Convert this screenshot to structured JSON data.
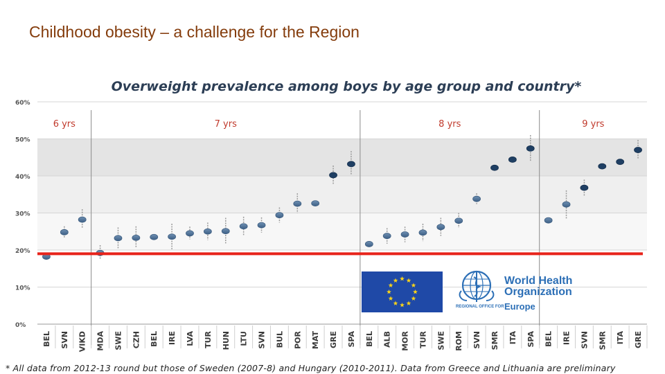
{
  "slide_title": "Childhood obesity – a challenge for the Region",
  "footnote": "* All data from 2012-13 round but those of Sweden (2007-8) and Hungary (2010-2011). Data from Greece and Lithuania are preliminary",
  "logos": {
    "who_line1": "World Health",
    "who_line2": "Organization",
    "who_subtitle": "REGIONAL OFFICE FOR",
    "who_region": "Europe"
  },
  "colors": {
    "title": "#843c0c",
    "marker": "#4a6f95",
    "marker_dark": "#1f3f63",
    "reference_line": "#e8231a",
    "eu_blue": "#1f49a7",
    "eu_star": "#f7d21a",
    "who_blue": "#2c6fb6"
  },
  "chart_data": {
    "type": "scatter",
    "title": "Overweight prevalence among boys by age group and country*",
    "xlabel": "",
    "ylabel": "",
    "ylim": [
      0,
      60
    ],
    "yticks": [
      "0%",
      "10%",
      "20%",
      "30%",
      "40%",
      "50%",
      "60%"
    ],
    "reference_line": 19,
    "groups": [
      {
        "label": "6 yrs",
        "countries": [
          "BEL",
          "SVN",
          "VIKD"
        ]
      },
      {
        "label": "7 yrs",
        "countries": [
          "MDA",
          "SWE",
          "CZH",
          "BEL",
          "IRE",
          "LVA",
          "TUR",
          "HUN",
          "LTU",
          "SVN",
          "BUL",
          "POR",
          "MAT",
          "GRE",
          "SPA"
        ]
      },
      {
        "label": "8 yrs",
        "countries": [
          "BEL",
          "ALB",
          "MOR",
          "TUR",
          "SWE",
          "ROM",
          "SVN",
          "SMR",
          "ITA",
          "SPA"
        ]
      },
      {
        "label": "9 yrs",
        "countries": [
          "BEL",
          "IRE",
          "SVN",
          "SMR",
          "ITA",
          "GRE"
        ]
      }
    ],
    "categories": [
      "BEL",
      "SVN",
      "VIKD",
      "MDA",
      "SWE",
      "CZH",
      "BEL",
      "IRE",
      "LVA",
      "TUR",
      "HUN",
      "LTU",
      "SVN",
      "BUL",
      "POR",
      "MAT",
      "GRE",
      "SPA",
      "BEL",
      "ALB",
      "MOR",
      "TUR",
      "SWE",
      "ROM",
      "SVN",
      "SMR",
      "ITA",
      "SPA",
      "BEL",
      "IRE",
      "SVN",
      "SMR",
      "ITA",
      "GRE"
    ],
    "values": [
      18.2,
      24.8,
      28.2,
      19.2,
      23.2,
      23.3,
      23.5,
      23.6,
      24.5,
      25.0,
      25.1,
      26.4,
      26.7,
      29.4,
      32.5,
      32.6,
      40.2,
      43.2,
      21.6,
      23.8,
      24.2,
      24.7,
      26.2,
      27.9,
      33.8,
      42.2,
      44.4,
      47.4,
      28.0,
      32.3,
      36.8,
      42.6,
      43.8,
      47.0
    ],
    "ci_low": [
      null,
      23.2,
      25.8,
      17.4,
      20.4,
      20.7,
      null,
      20.2,
      22.9,
      22.7,
      21.8,
      23.9,
      24.7,
      27.4,
      30.0,
      null,
      37.8,
      40.2,
      null,
      21.7,
      22.1,
      22.4,
      23.8,
      26.0,
      32.4,
      null,
      null,
      43.8,
      null,
      28.5,
      34.7,
      null,
      null,
      44.5
    ],
    "ci_high": [
      null,
      26.4,
      31.0,
      21.3,
      26.1,
      26.4,
      null,
      27.1,
      26.3,
      27.4,
      28.7,
      29.0,
      28.8,
      31.5,
      35.3,
      null,
      42.8,
      46.7,
      null,
      25.9,
      26.3,
      27.1,
      28.7,
      30.0,
      35.3,
      null,
      null,
      51.0,
      null,
      36.1,
      39.0,
      null,
      null,
      49.7
    ],
    "bands": [
      {
        "from": 40,
        "to": 50,
        "color": "#e4e4e4"
      },
      {
        "from": 30,
        "to": 40,
        "color": "#efefef"
      },
      {
        "from": 20,
        "to": 30,
        "color": "#f7f7f7"
      }
    ]
  }
}
